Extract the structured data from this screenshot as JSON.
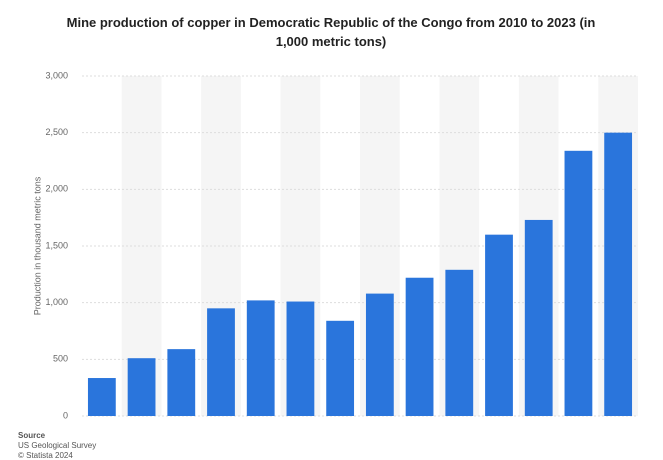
{
  "chart_data": {
    "type": "bar",
    "title": "Mine production of copper in Democratic Republic of the Congo from 2010 to 2023 (in 1,000 metric tons)",
    "y_label": "Production in thousand metric tons",
    "categories": [
      null,
      null,
      null,
      null,
      null,
      null,
      null,
      null,
      null,
      null,
      null,
      null,
      null,
      null
    ],
    "values": [
      335,
      510,
      590,
      950,
      1020,
      1010,
      840,
      1080,
      1220,
      1290,
      1600,
      1730,
      2340,
      2500
    ],
    "color": "#2a75dc",
    "ylim": [
      0,
      3000
    ],
    "yticks": [
      0,
      500,
      {
        "value": 1000,
        "label": "1,000"
      },
      {
        "value": 1500,
        "label": "1,500"
      },
      {
        "value": 2000,
        "label": "2,000"
      },
      {
        "value": 2500,
        "label": "2,500"
      },
      {
        "value": 3000,
        "label": "3,000"
      }
    ],
    "grid": true,
    "source_label": "Source",
    "source": "US Geological Survey",
    "copyright": "© Statista 2024"
  }
}
